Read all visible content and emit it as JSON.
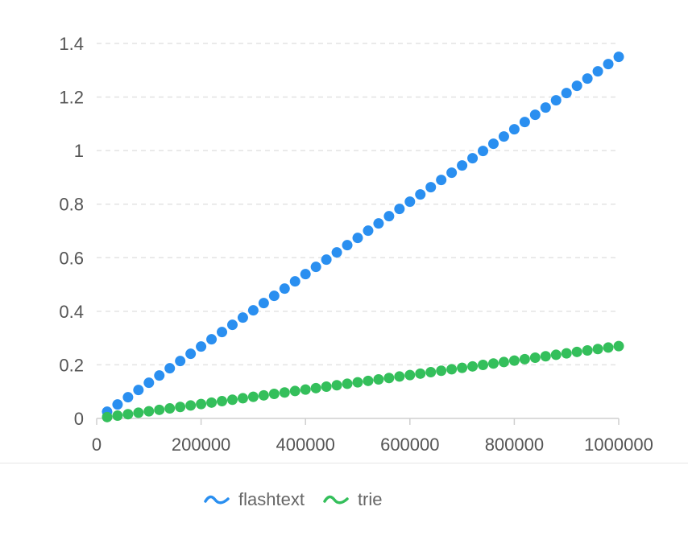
{
  "chart_data": {
    "type": "scatter",
    "title": "",
    "xlabel": "",
    "ylabel": "",
    "xlim": [
      0,
      1000000
    ],
    "ylim": [
      0,
      1.4
    ],
    "x_ticks": [
      "0",
      "200000",
      "400000",
      "600000",
      "800000",
      "1000000"
    ],
    "y_ticks": [
      "0",
      "0.2",
      "0.4",
      "0.6",
      "0.8",
      "1",
      "1.2",
      "1.4"
    ],
    "grid": "horizontal-dashed",
    "legend_position": "bottom",
    "series": [
      {
        "name": "flashtext",
        "color": "#2a8ff0",
        "x_start": 20000,
        "x_end": 1000000,
        "x_step": 20000,
        "y_start": 0.025,
        "y_end": 1.35
      },
      {
        "name": "trie",
        "color": "#34bf5b",
        "x_start": 20000,
        "x_end": 1000000,
        "x_step": 20000,
        "y_start": 0.005,
        "y_end": 0.27
      }
    ]
  },
  "legend": {
    "items": [
      {
        "label": "flashtext",
        "color": "#2a8ff0",
        "icon": "wave-icon"
      },
      {
        "label": "trie",
        "color": "#34bf5b",
        "icon": "wave-icon"
      }
    ]
  }
}
